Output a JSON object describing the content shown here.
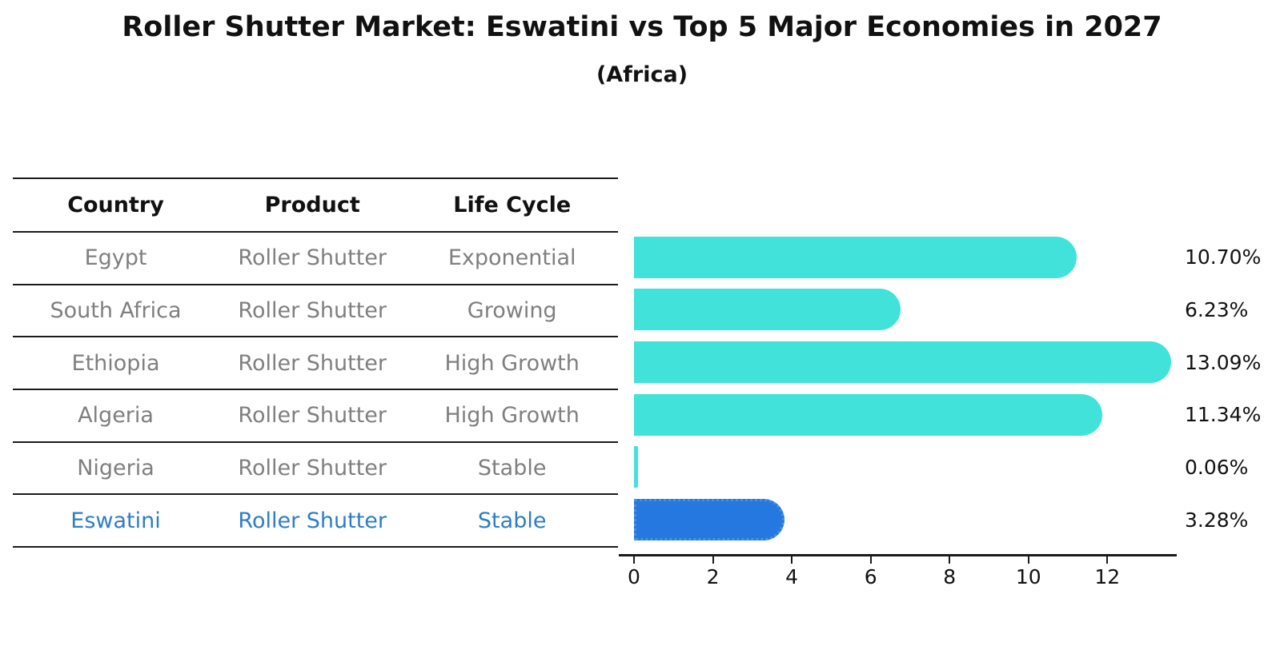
{
  "title": "Roller Shutter Market: Eswatini vs Top 5 Major Economies in 2027",
  "subtitle": "(Africa)",
  "table": {
    "headers": [
      "Country",
      "Product",
      "Life Cycle"
    ],
    "rows": [
      {
        "country": "Egypt",
        "product": "Roller Shutter",
        "life_cycle": "Exponential",
        "highlight": false
      },
      {
        "country": "South Africa",
        "product": "Roller Shutter",
        "life_cycle": "Growing",
        "highlight": false
      },
      {
        "country": "Ethiopia",
        "product": "Roller Shutter",
        "life_cycle": "High Growth",
        "highlight": false
      },
      {
        "country": "Algeria",
        "product": "Roller Shutter",
        "life_cycle": "High Growth",
        "highlight": false
      },
      {
        "country": "Nigeria",
        "product": "Roller Shutter",
        "life_cycle": "Stable",
        "highlight": false
      },
      {
        "country": "Eswatini",
        "product": "Roller Shutter",
        "life_cycle": "Stable",
        "highlight": true
      }
    ]
  },
  "chart_data": {
    "type": "bar",
    "orientation": "horizontal",
    "title": "Roller Shutter Market: Eswatini vs Top 5 Major Economies in 2027",
    "subtitle": "(Africa)",
    "categories": [
      "Egypt",
      "South Africa",
      "Ethiopia",
      "Algeria",
      "Nigeria",
      "Eswatini"
    ],
    "values": [
      10.7,
      6.23,
      13.09,
      11.34,
      0.06,
      3.28
    ],
    "value_labels": [
      "10.70%",
      "6.23%",
      "13.09%",
      "11.34%",
      "0.06%",
      "3.28%"
    ],
    "unit": "%",
    "highlight_category": "Eswatini",
    "xticks": [
      "0",
      "2",
      "4",
      "6",
      "8",
      "10",
      "12"
    ],
    "xtick_values": [
      0,
      2,
      4,
      6,
      8,
      10,
      12
    ],
    "xlim": [
      0,
      13.8
    ],
    "grid": false,
    "legend": null,
    "colors": {
      "bar": "#40E2D9",
      "highlight_bar": "#2478E0",
      "highlight_border": "#4A90E2",
      "highlight_text": "#2E7DC6",
      "table_text": "#7F7F7F",
      "axis_text": "#111111"
    }
  }
}
